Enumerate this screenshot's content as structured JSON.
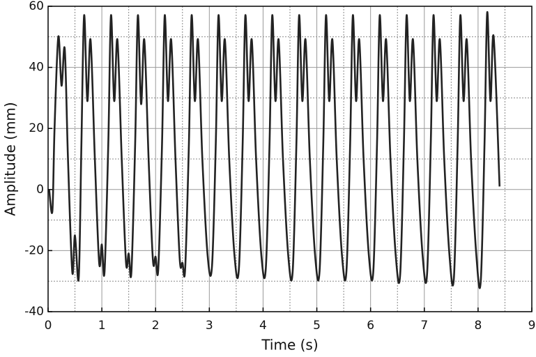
{
  "chart_data": {
    "type": "line",
    "xlabel": "Time (s)",
    "ylabel": "Amplitude (mm)",
    "xlim": [
      0,
      9
    ],
    "xticks": [
      0,
      1,
      2,
      3,
      4,
      5,
      6,
      7,
      8,
      9
    ],
    "ylim": [
      -40,
      60
    ],
    "yticks": [
      -40,
      -20,
      0,
      20,
      40,
      60
    ],
    "grid": true,
    "series": [
      {
        "color": "#222222",
        "x": [
          0.02,
          0.08,
          0.12,
          0.19,
          0.25,
          0.31,
          0.37,
          0.45,
          0.5,
          0.57,
          0.62,
          0.67,
          0.73,
          0.79,
          0.87,
          0.95,
          1.0,
          1.05,
          1.12,
          1.17,
          1.23,
          1.29,
          1.37,
          1.45,
          1.5,
          1.55,
          1.62,
          1.67,
          1.73,
          1.79,
          1.87,
          1.95,
          2.0,
          2.05,
          2.12,
          2.17,
          2.23,
          2.29,
          2.37,
          2.45,
          2.5,
          2.55,
          2.62,
          2.67,
          2.73,
          2.79,
          2.87,
          2.97,
          3.05,
          3.12,
          3.17,
          3.23,
          3.29,
          3.37,
          3.47,
          3.55,
          3.62,
          3.67,
          3.73,
          3.79,
          3.87,
          3.97,
          4.05,
          4.12,
          4.17,
          4.23,
          4.29,
          4.37,
          4.47,
          4.55,
          4.62,
          4.67,
          4.73,
          4.79,
          4.87,
          4.97,
          5.05,
          5.12,
          5.17,
          5.23,
          5.29,
          5.37,
          5.47,
          5.55,
          5.62,
          5.67,
          5.73,
          5.79,
          5.87,
          5.97,
          6.05,
          6.12,
          6.17,
          6.23,
          6.29,
          6.37,
          6.47,
          6.55,
          6.62,
          6.67,
          6.73,
          6.79,
          6.87,
          6.97,
          7.05,
          7.12,
          7.17,
          7.23,
          7.29,
          7.37,
          7.47,
          7.55,
          7.62,
          7.67,
          7.73,
          7.79,
          7.87,
          7.97,
          8.05,
          8.12,
          8.17,
          8.23,
          8.29,
          8.4
        ],
        "values": [
          0,
          -7,
          20,
          50,
          34,
          46,
          10,
          -27,
          -15,
          -29,
          15,
          57,
          29,
          49,
          10,
          -24,
          -18,
          -27,
          15,
          57,
          29,
          49,
          10,
          -24,
          -21,
          -27,
          15,
          57,
          28,
          49,
          10,
          -23,
          -22,
          -26,
          15,
          57,
          29,
          49,
          10,
          -23,
          -24,
          -26,
          15,
          57,
          29,
          49,
          10,
          -22,
          -25,
          15,
          57,
          29,
          49,
          10,
          -22,
          -26,
          15,
          57,
          29,
          49,
          10,
          -22,
          -26,
          15,
          57,
          29,
          49,
          10,
          -22,
          -27,
          15,
          57,
          29,
          49,
          10,
          -22,
          -27,
          15,
          57,
          29,
          49,
          10,
          -22,
          -27,
          15,
          57,
          29,
          49,
          10,
          -22,
          -27,
          15,
          57,
          29,
          49,
          10,
          -22,
          -28,
          15,
          57,
          29,
          49,
          10,
          -22,
          -28,
          15,
          57,
          29,
          49,
          10,
          -22,
          -29,
          15,
          57,
          29,
          49,
          10,
          -22,
          -30,
          15,
          58,
          29,
          50,
          1
        ]
      }
    ]
  }
}
